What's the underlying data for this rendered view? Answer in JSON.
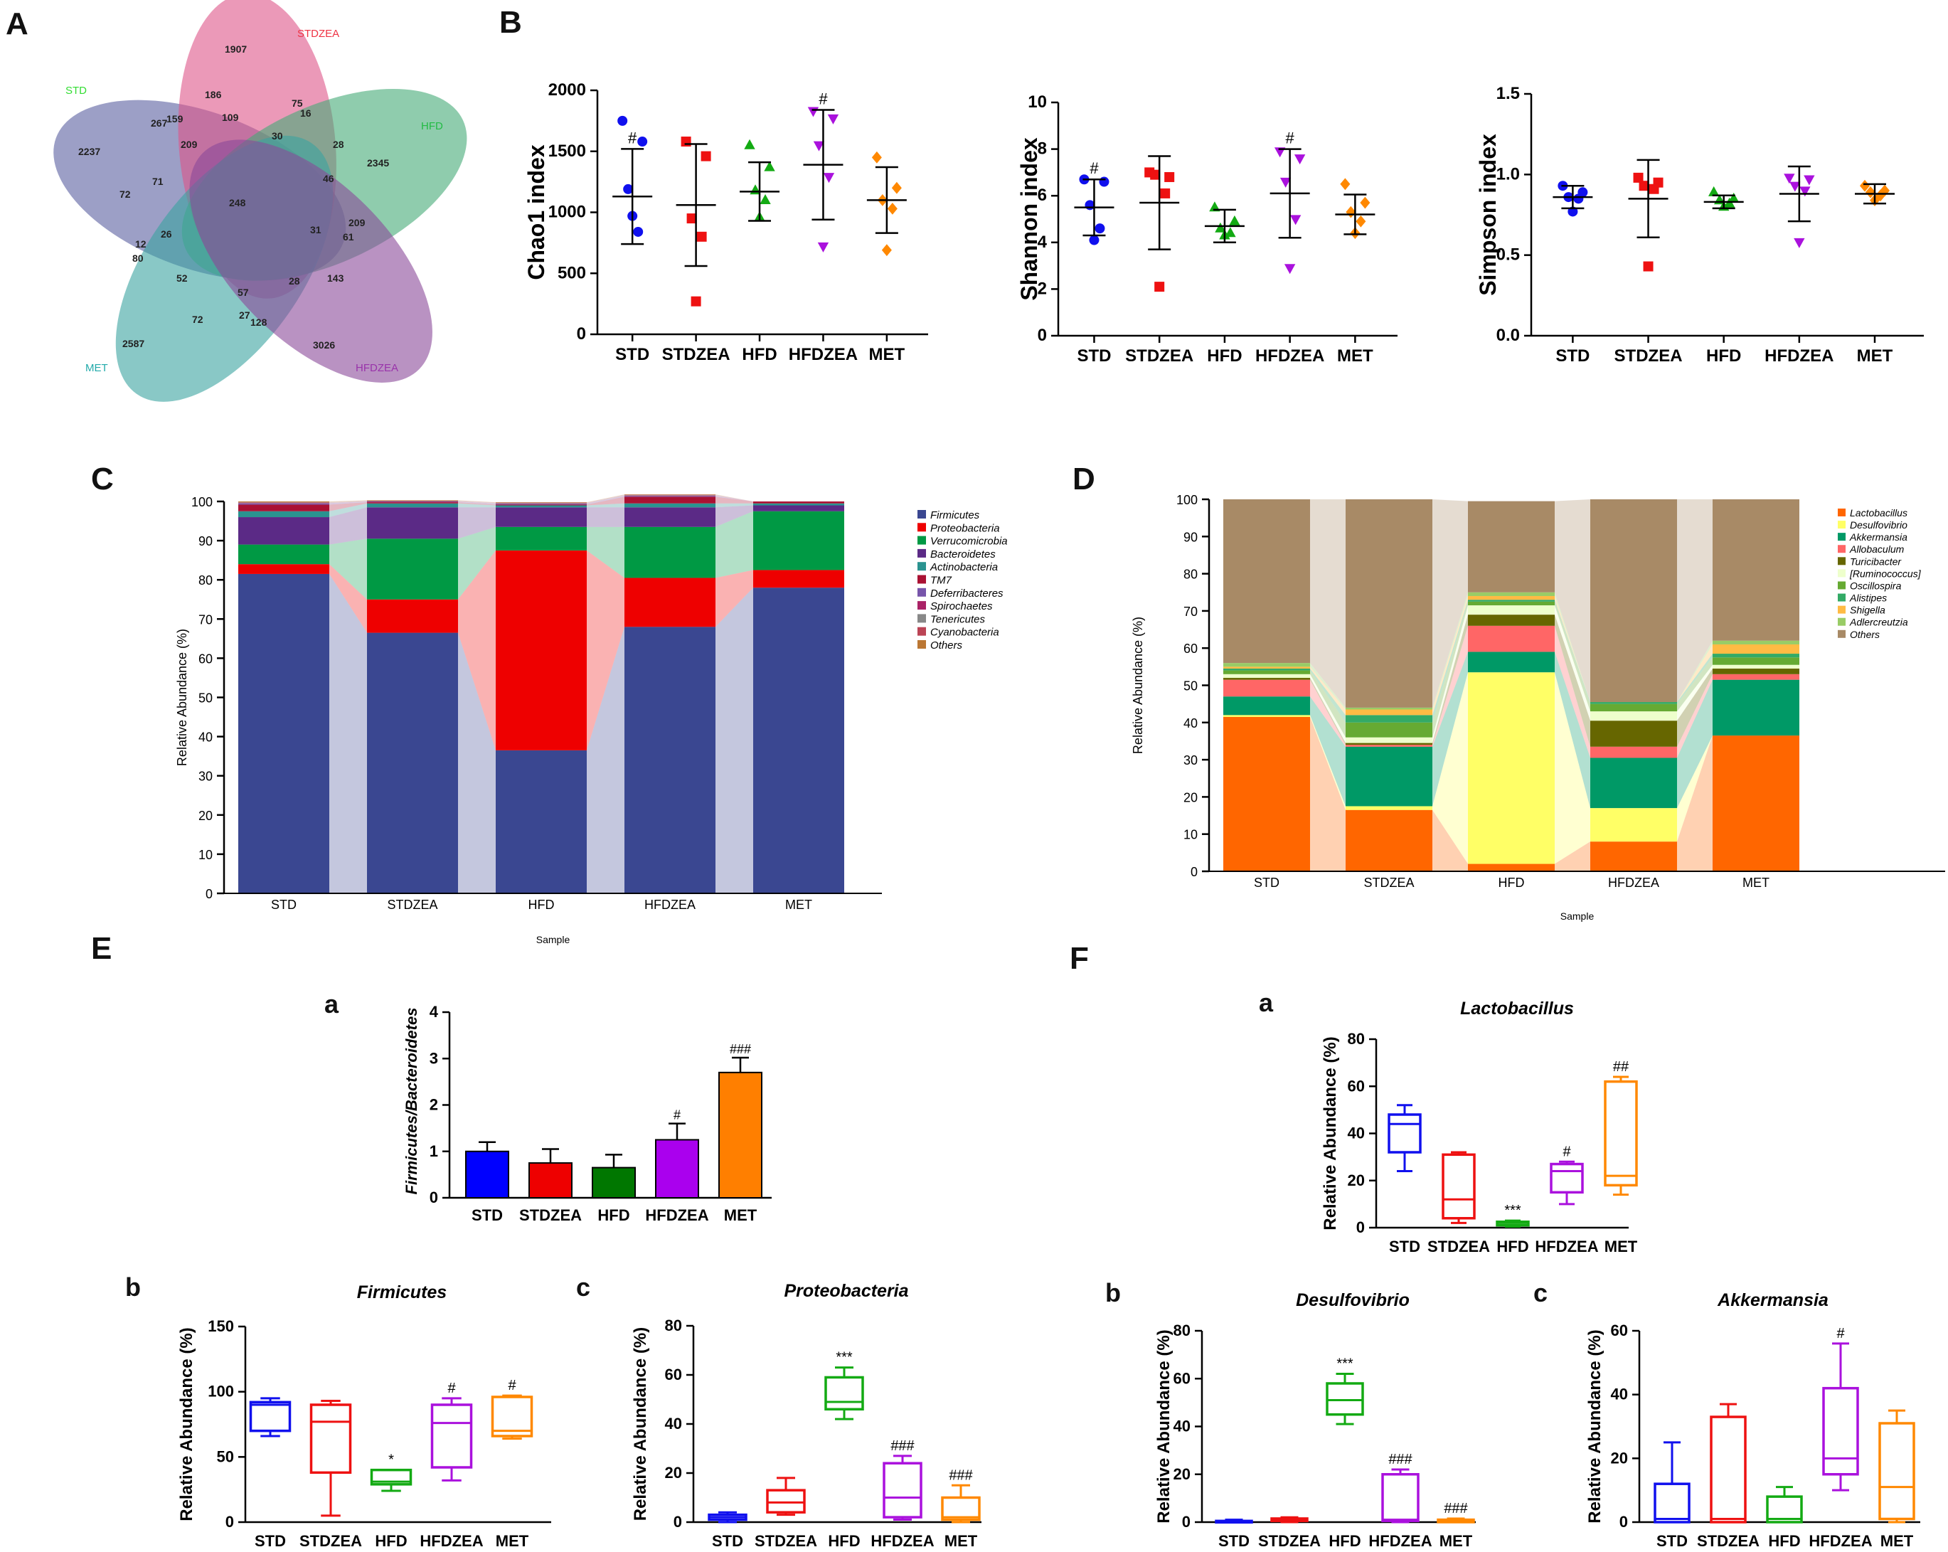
{
  "panel_letters": {
    "A": "A",
    "B": "B",
    "C": "C",
    "D": "D",
    "E": "E",
    "F": "F",
    "Ea": "a",
    "Eb": "b",
    "Ec": "c",
    "Fa": "a",
    "Fb": "b",
    "Fc": "c"
  },
  "groups": [
    "STD",
    "STDZEA",
    "HFD",
    "HFDZEA",
    "MET"
  ],
  "group_colors": [
    "#1010ee",
    "#ee1111",
    "#13aa13",
    "#aa11dd",
    "#ff8800"
  ],
  "venn": {
    "labels": [
      {
        "text": "STD",
        "color": "#33dd33"
      },
      {
        "text": "STDZEA",
        "color": "#ee3344"
      },
      {
        "text": "HFD",
        "color": "#22bb44"
      },
      {
        "text": "MET",
        "color": "#22aaaa"
      },
      {
        "text": "HFDZEA",
        "color": "#9933aa"
      }
    ],
    "petal_colors": [
      "#5a5fa0",
      "#dd5588",
      "#44aa77",
      "#3aa3a0",
      "#8a4a9a"
    ],
    "numbers": [
      "1907",
      "186",
      "75",
      "16",
      "267",
      "159",
      "109",
      "30",
      "28",
      "2237",
      "209",
      "2345",
      "72",
      "71",
      "46",
      "248",
      "209",
      "31",
      "61",
      "12",
      "80",
      "26",
      "52",
      "143",
      "28",
      "57",
      "72",
      "27",
      "128",
      "2587",
      "3026"
    ]
  },
  "chart_data": [
    {
      "id": "B1",
      "type": "scatter",
      "ylabel": "Chao1 index",
      "ylim": [
        0,
        2000
      ],
      "yticks": [
        "0",
        "500",
        "1000",
        "1500",
        "2000"
      ],
      "categories": [
        "STD",
        "STDZEA",
        "HFD",
        "HFDZEA",
        "MET"
      ],
      "points": [
        [
          1750,
          1580,
          1190,
          840,
          970
        ],
        [
          1580,
          1460,
          950,
          800,
          270
        ],
        [
          1550,
          1370,
          1180,
          1100,
          960
        ],
        [
          1830,
          1770,
          1550,
          1290,
          720
        ],
        [
          1450,
          1200,
          1100,
          1030,
          690
        ]
      ],
      "mean": [
        1130,
        1060,
        1170,
        1390,
        1100
      ],
      "sd": [
        390,
        500,
        240,
        450,
        270
      ],
      "markers": [
        "#",
        " ",
        " ",
        "#",
        " "
      ]
    },
    {
      "id": "B2",
      "type": "scatter",
      "ylabel": "Shannon index",
      "ylim": [
        0,
        10
      ],
      "yticks": [
        "0",
        "2",
        "4",
        "6",
        "8",
        "10"
      ],
      "categories": [
        "STD",
        "STDZEA",
        "HFD",
        "HFDZEA",
        "MET"
      ],
      "points": [
        [
          6.7,
          6.6,
          5.6,
          4.6,
          4.1
        ],
        [
          7.0,
          6.8,
          6.9,
          6.1,
          2.1
        ],
        [
          5.5,
          4.9,
          4.6,
          4.4,
          4.3
        ],
        [
          7.9,
          7.6,
          6.6,
          5.0,
          2.9
        ],
        [
          6.5,
          5.7,
          5.3,
          4.9,
          4.4
        ]
      ],
      "mean": [
        5.5,
        5.7,
        4.7,
        6.1,
        5.2
      ],
      "sd": [
        1.2,
        2.0,
        0.7,
        1.9,
        0.85
      ],
      "markers": [
        "#",
        " ",
        " ",
        "#",
        " "
      ]
    },
    {
      "id": "B3",
      "type": "scatter",
      "ylabel": "Simpson index",
      "ylim": [
        0,
        1.5
      ],
      "yticks": [
        "0.0",
        "0.5",
        "1.0",
        "1.5"
      ],
      "categories": [
        "STD",
        "STDZEA",
        "HFD",
        "HFDZEA",
        "MET"
      ],
      "points": [
        [
          0.93,
          0.89,
          0.86,
          0.85,
          0.77
        ],
        [
          0.98,
          0.95,
          0.93,
          0.91,
          0.43
        ],
        [
          0.89,
          0.85,
          0.84,
          0.82,
          0.8
        ],
        [
          0.98,
          0.97,
          0.93,
          0.9,
          0.58
        ],
        [
          0.93,
          0.9,
          0.89,
          0.87,
          0.84
        ]
      ],
      "mean": [
        0.86,
        0.85,
        0.83,
        0.88,
        0.88
      ],
      "sd": [
        0.07,
        0.24,
        0.04,
        0.17,
        0.06
      ],
      "markers": [
        " ",
        " ",
        " ",
        " ",
        " "
      ]
    },
    {
      "id": "C",
      "type": "stacked-bar",
      "ylabel": "Relative Abundance (%)",
      "xlabel": "Sample",
      "ylim": [
        0,
        100
      ],
      "yticks": [
        "0",
        "10",
        "20",
        "30",
        "40",
        "50",
        "60",
        "70",
        "80",
        "90",
        "100"
      ],
      "categories": [
        "STD",
        "STDZEA",
        "HFD",
        "HFDZEA",
        "MET"
      ],
      "series": [
        {
          "name": "Firmicutes",
          "color": "#3a4791",
          "values": [
            81.5,
            66.5,
            36.5,
            68,
            78
          ]
        },
        {
          "name": "Proteobacteria",
          "color": "#ee0000",
          "values": [
            2.5,
            8.5,
            51,
            12.5,
            4.5
          ]
        },
        {
          "name": "Verrucomicrobia",
          "color": "#009944",
          "values": [
            5,
            15.5,
            6,
            13,
            15
          ]
        },
        {
          "name": "Bacteroidetes",
          "color": "#5b2a86",
          "values": [
            7,
            8,
            5,
            5,
            1.5
          ]
        },
        {
          "name": "Actinobacteria",
          "color": "#2a9390",
          "values": [
            1.5,
            1,
            0.5,
            1,
            0.5
          ]
        },
        {
          "name": "TM7",
          "color": "#aa1133",
          "values": [
            1.7,
            0.3,
            0.2,
            1.7,
            0.5
          ]
        },
        {
          "name": "Deferribacteres",
          "color": "#7755aa",
          "values": [
            0.3,
            0.1,
            0.2,
            0.2,
            0
          ]
        },
        {
          "name": "Spirochaetes",
          "color": "#aa2266",
          "values": [
            0.1,
            0.1,
            0.1,
            0.1,
            0
          ]
        },
        {
          "name": "Tenericutes",
          "color": "#888888",
          "values": [
            0.1,
            0.1,
            0.1,
            0.1,
            0
          ]
        },
        {
          "name": "Cyanobacteria",
          "color": "#bb4455",
          "values": [
            0.1,
            0.1,
            0.1,
            0.1,
            0
          ]
        },
        {
          "name": "Others",
          "color": "#bb7733",
          "values": [
            0.2,
            0.1,
            0.1,
            0.1,
            0
          ]
        }
      ]
    },
    {
      "id": "D",
      "type": "stacked-bar",
      "ylabel": "Relative Abundance (%)",
      "xlabel": "Sample",
      "ylim": [
        0,
        100
      ],
      "yticks": [
        "0",
        "10",
        "20",
        "30",
        "40",
        "50",
        "60",
        "70",
        "80",
        "90",
        "100"
      ],
      "categories": [
        "STD",
        "STDZEA",
        "HFD",
        "HFDZEA",
        "MET"
      ],
      "series": [
        {
          "name": "Lactobacillus",
          "color": "#ff6600",
          "values": [
            41.5,
            16.5,
            2,
            8,
            36.5
          ]
        },
        {
          "name": "Desulfovibrio",
          "color": "#ffff66",
          "values": [
            0.5,
            1,
            51.5,
            9,
            0
          ]
        },
        {
          "name": "Akkermansia",
          "color": "#009966",
          "values": [
            5,
            16,
            5.5,
            13.5,
            15
          ]
        },
        {
          "name": "Allobaculum",
          "color": "#ff6666",
          "values": [
            4.5,
            0.5,
            7,
            3,
            1.5
          ]
        },
        {
          "name": "Turicibacter",
          "color": "#666600",
          "values": [
            0.5,
            0.5,
            3,
            7,
            1.5
          ]
        },
        {
          "name": "[Ruminococcus]",
          "color": "#eeffcc",
          "values": [
            1,
            1.5,
            2.5,
            2.5,
            1
          ]
        },
        {
          "name": "Oscillospira",
          "color": "#66aa33",
          "values": [
            1,
            4,
            1,
            2,
            2
          ]
        },
        {
          "name": "Alistipes",
          "color": "#33aa66",
          "values": [
            0.5,
            2,
            0.5,
            0.5,
            1
          ]
        },
        {
          "name": "Shigella",
          "color": "#ffbb44",
          "values": [
            0.5,
            1.5,
            1,
            0,
            2.5
          ]
        },
        {
          "name": "Adlercreutzia",
          "color": "#99cc66",
          "values": [
            1,
            0.5,
            1,
            0,
            1
          ]
        },
        {
          "name": "Others",
          "color": "#a88a66",
          "values": [
            44,
            56,
            24.5,
            54.5,
            38
          ]
        }
      ]
    },
    {
      "id": "Ea",
      "type": "bar",
      "title": "",
      "ylabel": "Firmicutes/Bacteroidetes",
      "ylim": [
        0,
        4
      ],
      "yticks": [
        "0",
        "1",
        "2",
        "3",
        "4"
      ],
      "categories": [
        "STD",
        "STDZEA",
        "HFD",
        "HFDZEA",
        "MET"
      ],
      "values": [
        1.0,
        0.75,
        0.65,
        1.25,
        2.7
      ],
      "errors": [
        0.2,
        0.3,
        0.28,
        0.35,
        0.32
      ],
      "markers": [
        "",
        " ",
        "",
        "#",
        "###"
      ],
      "colors": [
        "#0000ff",
        "#ee0000",
        "#007700",
        "#aa00ee",
        "#ff7f00"
      ]
    },
    {
      "id": "Eb",
      "type": "box",
      "title": "Firmicutes",
      "ylabel": "Relative Abundance (%)",
      "ylim": [
        0,
        150
      ],
      "yticks": [
        "0",
        "50",
        "100",
        "150"
      ],
      "categories": [
        "STD",
        "STDZEA",
        "HFD",
        "HFDZEA",
        "MET"
      ],
      "boxes": [
        [
          66,
          70,
          90,
          92,
          95
        ],
        [
          5,
          38,
          77,
          90,
          93
        ],
        [
          24,
          29,
          31,
          40,
          40
        ],
        [
          32,
          42,
          76,
          90,
          95
        ],
        [
          64,
          66,
          70,
          96,
          97
        ]
      ],
      "markers": [
        "",
        "",
        "*",
        "#",
        "#"
      ]
    },
    {
      "id": "Ec",
      "type": "box",
      "title": "Proteobacteria",
      "ylabel": "Relative Abundance (%)",
      "ylim": [
        0,
        80
      ],
      "yticks": [
        "0",
        "20",
        "40",
        "60",
        "80"
      ],
      "categories": [
        "STD",
        "STDZEA",
        "HFD",
        "HFDZEA",
        "MET"
      ],
      "boxes": [
        [
          0,
          1,
          2,
          3,
          4
        ],
        [
          3,
          4,
          8,
          13,
          18
        ],
        [
          42,
          46,
          49,
          59,
          63
        ],
        [
          1,
          2,
          10,
          24,
          27
        ],
        [
          0,
          1,
          2,
          10,
          15
        ]
      ],
      "markers": [
        "",
        "",
        "***",
        "###",
        "###"
      ]
    },
    {
      "id": "Fa",
      "type": "box",
      "title": "Lactobacillus",
      "ylabel": "Relative Abundance (%)",
      "ylim": [
        0,
        80
      ],
      "yticks": [
        "0",
        "20",
        "40",
        "60",
        "80"
      ],
      "categories": [
        "STD",
        "STDZEA",
        "HFD",
        "HFDZEA",
        "MET"
      ],
      "boxes": [
        [
          24,
          32,
          44,
          48,
          52
        ],
        [
          2,
          4,
          12,
          31,
          32
        ],
        [
          0.5,
          1,
          2,
          2.5,
          3
        ],
        [
          10,
          15,
          24,
          27,
          28
        ],
        [
          14,
          18,
          22,
          62,
          64
        ]
      ],
      "markers": [
        "",
        "",
        "***",
        "#",
        "##"
      ]
    },
    {
      "id": "Fb",
      "type": "box",
      "title": "Desulfovibrio",
      "ylabel": "Relative Abundance (%)",
      "ylim": [
        0,
        80
      ],
      "yticks": [
        "0",
        "20",
        "40",
        "60",
        "80"
      ],
      "categories": [
        "STD",
        "STDZEA",
        "HFD",
        "HFDZEA",
        "MET"
      ],
      "boxes": [
        [
          0,
          0,
          0,
          0.5,
          1
        ],
        [
          0,
          0.5,
          1,
          1.5,
          2
        ],
        [
          41,
          45,
          51,
          58,
          62
        ],
        [
          0,
          0.5,
          1,
          20,
          22
        ],
        [
          0,
          0,
          0.5,
          1,
          1.5
        ]
      ],
      "markers": [
        "",
        "",
        "***",
        "###",
        "###"
      ]
    },
    {
      "id": "Fc",
      "type": "box",
      "title": "Akkermansia",
      "ylabel": "Relative Abundance (%)",
      "ylim": [
        0,
        60
      ],
      "yticks": [
        "0",
        "20",
        "40",
        "60"
      ],
      "categories": [
        "STD",
        "STDZEA",
        "HFD",
        "HFDZEA",
        "MET"
      ],
      "boxes": [
        [
          0,
          0,
          1,
          12,
          25
        ],
        [
          0,
          0,
          1,
          33,
          37
        ],
        [
          0,
          0,
          1,
          8,
          11
        ],
        [
          10,
          15,
          20,
          42,
          56
        ],
        [
          0,
          1,
          11,
          31,
          35
        ]
      ],
      "markers": [
        "",
        "",
        "",
        "#",
        ""
      ]
    }
  ]
}
